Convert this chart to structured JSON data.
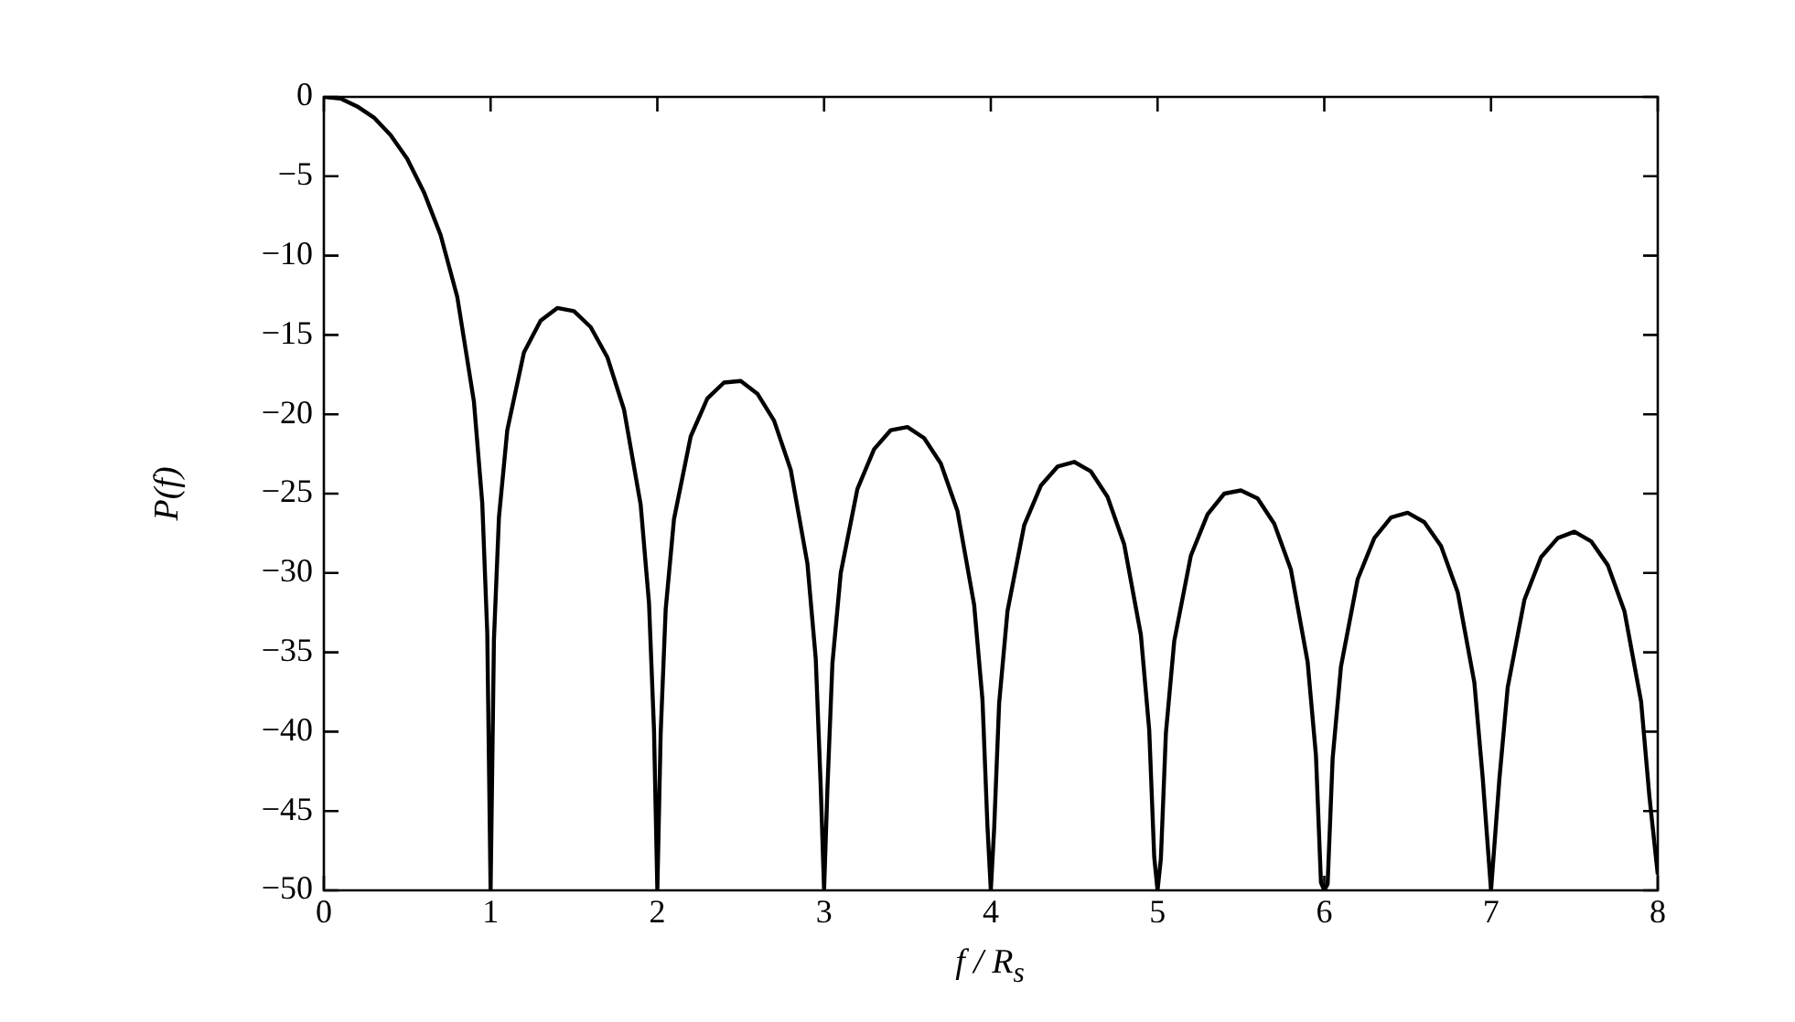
{
  "chart_data": {
    "type": "line",
    "xlabel": "f / R$_{s}$",
    "ylabel": "P(f)",
    "grid": false,
    "legend": false,
    "marker": "none",
    "line_style": "solid",
    "xlim": [
      0,
      8
    ],
    "xticks": [
      0,
      1,
      2,
      3,
      4,
      5,
      6,
      7,
      8
    ],
    "ylim": [
      -50,
      0
    ],
    "yticks": [
      -50,
      -45,
      -40,
      -35,
      -30,
      -25,
      -20,
      -15,
      -10,
      -5,
      0
    ],
    "series": [
      {
        "color": "#000000",
        "x": [
          0,
          0.1,
          0.2,
          0.3,
          0.4,
          0.5,
          0.6,
          0.7,
          0.8,
          0.9,
          0.95,
          0.98,
          1,
          1.02,
          1.05,
          1.1,
          1.2,
          1.3,
          1.4,
          1.5,
          1.6,
          1.7,
          1.8,
          1.9,
          1.95,
          1.98,
          2,
          2.02,
          2.05,
          2.1,
          2.2,
          2.3,
          2.4,
          2.5,
          2.6,
          2.7,
          2.8,
          2.9,
          2.95,
          2.98,
          3,
          3.02,
          3.05,
          3.1,
          3.2,
          3.3,
          3.4,
          3.5,
          3.6,
          3.7,
          3.8,
          3.9,
          3.95,
          3.98,
          4,
          4.02,
          4.05,
          4.1,
          4.2,
          4.3,
          4.4,
          4.5,
          4.6,
          4.7,
          4.8,
          4.9,
          4.95,
          4.98,
          5,
          5.02,
          5.05,
          5.1,
          5.2,
          5.3,
          5.4,
          5.5,
          5.6,
          5.7,
          5.8,
          5.9,
          5.95,
          5.98,
          6,
          6.02,
          6.05,
          6.1,
          6.2,
          6.3,
          6.4,
          6.5,
          6.6,
          6.7,
          6.8,
          6.9,
          6.95,
          7,
          7.05,
          7.1,
          7.2,
          7.3,
          7.4,
          7.5,
          7.6,
          7.7,
          7.8,
          7.9,
          7.95,
          8
        ],
        "values": [
          0,
          -0.1,
          -0.6,
          -1.3,
          -2.4,
          -3.9,
          -6,
          -8.7,
          -12.6,
          -19.2,
          -25.6,
          -33.8,
          -50,
          -34.2,
          -26.5,
          -21,
          -16.1,
          -14.1,
          -13.3,
          -13.5,
          -14.5,
          -16.4,
          -19.7,
          -25.7,
          -31.9,
          -39.9,
          -50,
          -40.1,
          -32.3,
          -26.6,
          -21.4,
          -19,
          -18,
          -17.9,
          -18.7,
          -20.4,
          -23.5,
          -29.4,
          -35.4,
          -43.5,
          -50,
          -43.6,
          -35.7,
          -30,
          -24.7,
          -22.2,
          -21,
          -20.8,
          -21.5,
          -23.1,
          -26.1,
          -32,
          -38,
          -46,
          -50,
          -46.1,
          -38.2,
          -32.4,
          -27,
          -24.5,
          -23.3,
          -23,
          -23.6,
          -25.2,
          -28.2,
          -33.9,
          -39.9,
          -47.9,
          -50,
          -48,
          -40.1,
          -34.3,
          -28.9,
          -26.3,
          -25,
          -24.8,
          -25.3,
          -26.9,
          -29.8,
          -35.6,
          -41.5,
          -49.5,
          -50,
          -49.6,
          -41.7,
          -35.9,
          -30.4,
          -27.8,
          -26.5,
          -26.2,
          -26.8,
          -28.3,
          -31.2,
          -36.9,
          -42.9,
          -50,
          -43,
          -37.2,
          -31.7,
          -29,
          -27.8,
          -27.4,
          -28,
          -29.5,
          -32.4,
          -38.1,
          -44.1,
          -49
        ]
      }
    ]
  }
}
